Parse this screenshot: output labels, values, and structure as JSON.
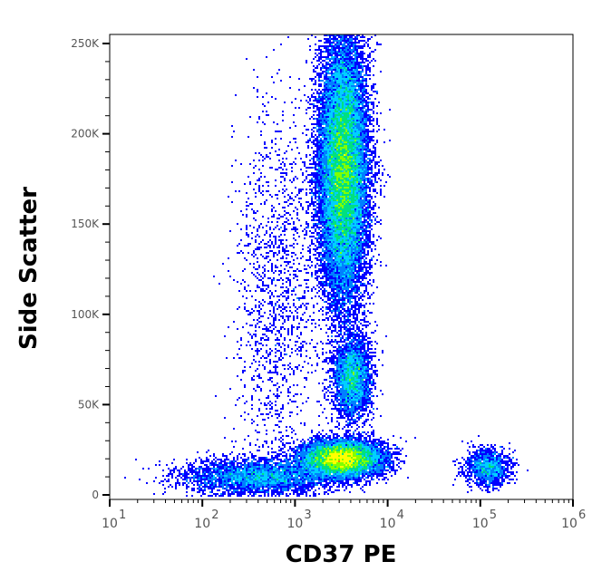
{
  "chart_data": {
    "type": "heatmap",
    "subtype": "flow-cytometry density dot plot",
    "xlabel": "CD37 PE",
    "ylabel": "Side Scatter",
    "x_scale": "log",
    "xlim": [
      10,
      1000000
    ],
    "ylim": [
      0,
      255000
    ],
    "x_ticks": [
      {
        "base": "10",
        "exp": "1"
      },
      {
        "base": "10",
        "exp": "2"
      },
      {
        "base": "10",
        "exp": "3"
      },
      {
        "base": "10",
        "exp": "4"
      },
      {
        "base": "10",
        "exp": "5"
      },
      {
        "base": "10",
        "exp": "6"
      }
    ],
    "y_ticks": [
      {
        "value": 0,
        "label": "0"
      },
      {
        "value": 50000,
        "label": "50K"
      },
      {
        "value": 100000,
        "label": "100K"
      },
      {
        "value": 150000,
        "label": "150K"
      },
      {
        "value": 200000,
        "label": "200K"
      },
      {
        "value": 250000,
        "label": "250K"
      }
    ],
    "density_colors": [
      "#0000ff",
      "#0080ff",
      "#00d0ff",
      "#00e080",
      "#80ff00",
      "#ffff00",
      "#ff8000",
      "#ff0000"
    ],
    "populations": [
      {
        "cd37_log10": 3.52,
        "ssc": 180000,
        "sd_log10": 0.13,
        "sd_ssc": 36000,
        "events": 24000
      },
      {
        "cd37_log10": 3.62,
        "ssc": 65000,
        "sd_log10": 0.1,
        "sd_ssc": 11000,
        "events": 3500
      },
      {
        "cd37_log10": 3.5,
        "ssc": 20000,
        "sd_log10": 0.22,
        "sd_ssc": 5000,
        "events": 10000
      },
      {
        "cd37_log10": 2.6,
        "ssc": 10000,
        "sd_log10": 0.4,
        "sd_ssc": 5000,
        "events": 4000
      },
      {
        "cd37_log10": 5.08,
        "ssc": 15000,
        "sd_log10": 0.12,
        "sd_ssc": 5000,
        "events": 1400
      },
      {
        "cd37_log10": 2.8,
        "ssc": 110000,
        "sd_log10": 0.22,
        "sd_ssc": 55000,
        "events": 1500
      }
    ]
  }
}
